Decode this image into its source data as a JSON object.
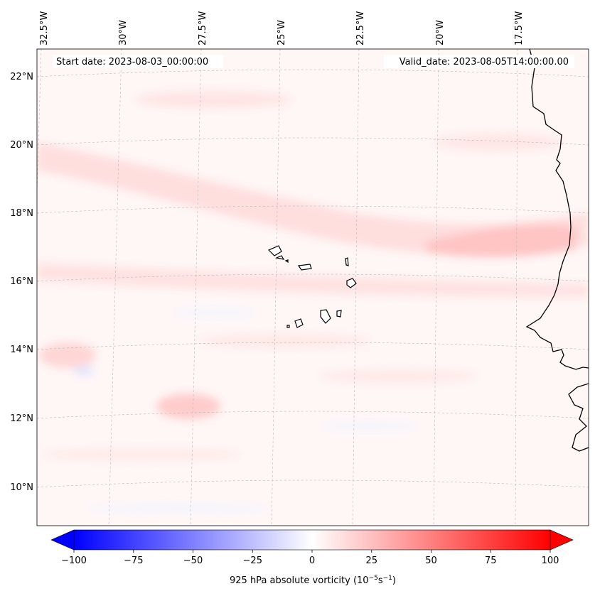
{
  "map": {
    "start_label": "Start date: 2023-08-03_00:00:00",
    "valid_label": "Valid_date: 2023-08-05T14:00:00.00",
    "lon_labels": [
      "32.5°W",
      "30°W",
      "27.5°W",
      "25°W",
      "22.5°W",
      "20°W",
      "17.5°W"
    ],
    "lat_labels": [
      "22°N",
      "20°N",
      "18°N",
      "16°N",
      "14°N",
      "12°N",
      "10°N"
    ]
  },
  "colorbar": {
    "label": "925 hPa absolute vorticity (10",
    "label_exp1": "−5",
    "label_mid": "s",
    "label_exp2": "−1",
    "label_close": ")",
    "min": -100,
    "max": 100,
    "ticks": [
      "−100",
      "−75",
      "−50",
      "−25",
      "0",
      "25",
      "50",
      "75",
      "100"
    ]
  },
  "colors": {
    "negative": "#0000ff",
    "neutral": "#ffffff",
    "positive": "#ff0000",
    "coast": "#000000"
  }
}
